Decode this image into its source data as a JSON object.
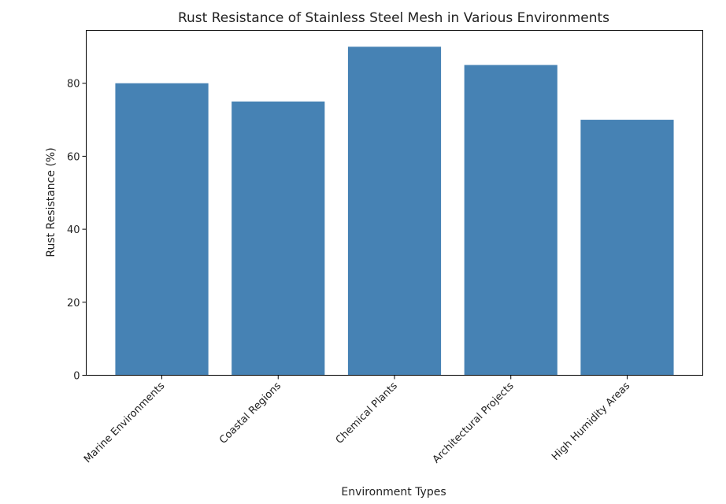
{
  "chart_data": {
    "type": "bar",
    "title": "Rust Resistance of Stainless Steel Mesh in Various Environments",
    "xlabel": "Environment Types",
    "ylabel": "Rust Resistance (%)",
    "categories": [
      "Marine Environments",
      "Coastal Regions",
      "Chemical Plants",
      "Architectural Projects",
      "High Humidity Areas"
    ],
    "values": [
      80,
      75,
      90,
      85,
      70
    ],
    "ylim": [
      0,
      94.5
    ],
    "yticks": [
      0,
      20,
      40,
      60,
      80
    ],
    "bar_color": "#4682b4",
    "grid": false,
    "legend": "none"
  }
}
